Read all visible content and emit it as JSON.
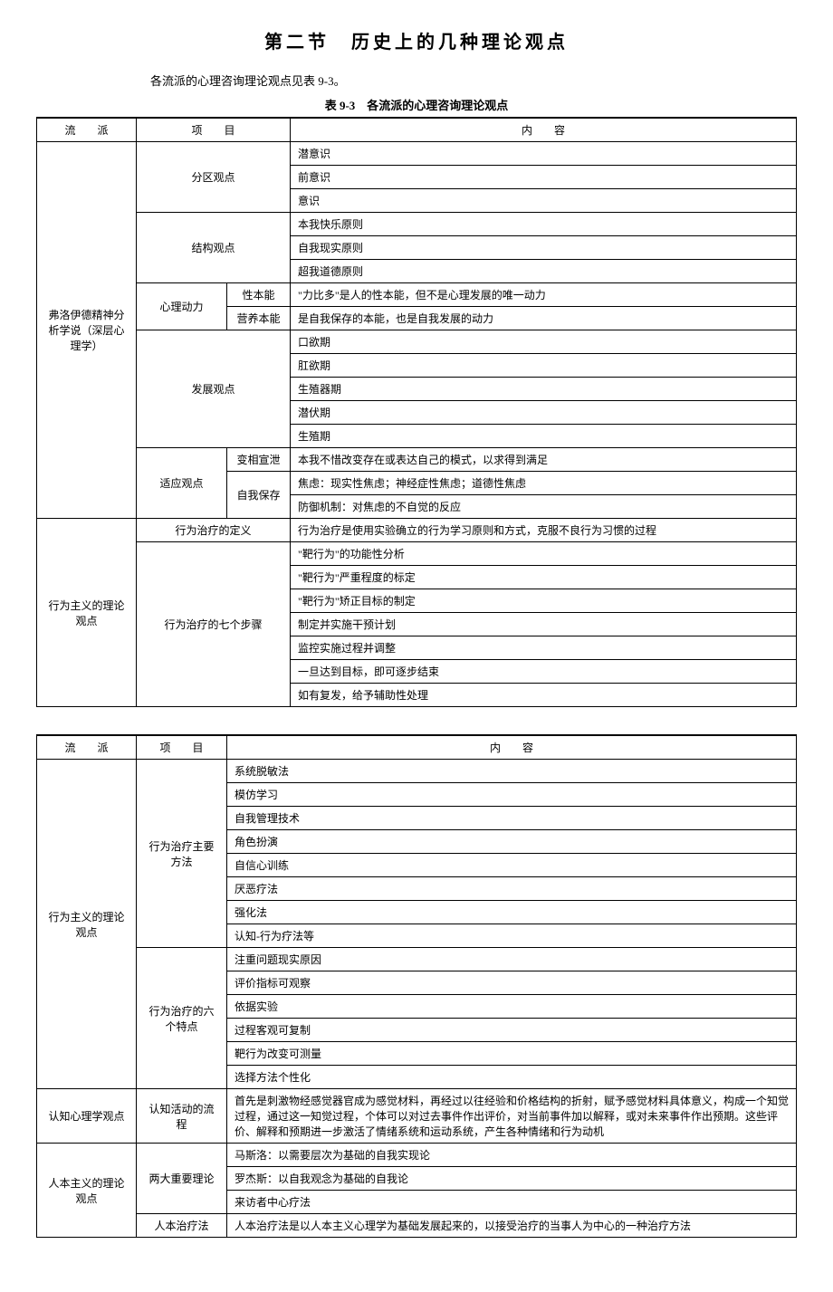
{
  "section_title": "第二节　历史上的几种理论观点",
  "intro": "各流派的心理咨询理论观点见表 9-3。",
  "table_caption": "表 9-3　各流派的心理咨询理论观点",
  "headers": {
    "school": "流　　派",
    "item": "项　　目",
    "content": "内　　容"
  },
  "table1": {
    "freud": {
      "name": "弗洛伊德精神分析学说（深层心理学）",
      "division": {
        "label": "分区观点",
        "r1": "潜意识",
        "r2": "前意识",
        "r3": "意识"
      },
      "structure": {
        "label": "结构观点",
        "r1": "本我快乐原则",
        "r2": "自我现实原则",
        "r3": "超我道德原则"
      },
      "dynamic": {
        "label": "心理动力",
        "r1_sub": "性本能",
        "r1_content": "\"力比多\"是人的性本能，但不是心理发展的唯一动力",
        "r2_sub": "营养本能",
        "r2_content": "是自我保存的本能，也是自我发展的动力"
      },
      "development": {
        "label": "发展观点",
        "r1": "口欲期",
        "r2": "肛欲期",
        "r3": "生殖器期",
        "r4": "潜伏期",
        "r5": "生殖期"
      },
      "adaptation": {
        "label": "适应观点",
        "r1_sub": "变相宣泄",
        "r1_content": "本我不惜改变存在或表达自己的模式，以求得到满足",
        "r2_sub": "自我保存",
        "r2_content": "焦虑：现实性焦虑；神经症性焦虑；道德性焦虑",
        "r3_content": "防御机制：对焦虑的不自觉的反应"
      }
    },
    "behaviorism": {
      "name": "行为主义的理论观点",
      "definition": {
        "label": "行为治疗的定义",
        "content": "行为治疗是使用实验确立的行为学习原则和方式，克服不良行为习惯的过程"
      },
      "steps": {
        "label": "行为治疗的七个步骤",
        "r1": "\"靶行为\"的功能性分析",
        "r2": "\"靶行为\"严重程度的标定",
        "r3": "\"靶行为\"矫正目标的制定",
        "r4": "制定并实施干预计划",
        "r5": "监控实施过程并调整",
        "r6": "一旦达到目标，即可逐步结束",
        "r7": "如有复发，给予辅助性处理"
      }
    }
  },
  "table2": {
    "behaviorism": {
      "name": "行为主义的理论观点",
      "methods": {
        "label": "行为治疗主要方法",
        "r1": "系统脱敏法",
        "r2": "模仿学习",
        "r3": "自我管理技术",
        "r4": "角色扮演",
        "r5": "自信心训练",
        "r6": "厌恶疗法",
        "r7": "强化法",
        "r8": "认知-行为疗法等"
      },
      "features": {
        "label": "行为治疗的六个特点",
        "r1": "注重问题现实原因",
        "r2": "评价指标可观察",
        "r3": "依据实验",
        "r4": "过程客观可复制",
        "r5": "靶行为改变可测量",
        "r6": "选择方法个性化"
      }
    },
    "cognitive": {
      "name": "认知心理学观点",
      "process": {
        "label": "认知活动的流程",
        "content": "首先是刺激物经感觉器官成为感觉材料，再经过以往经验和价格结构的折射，赋予感觉材料具体意义，构成一个知觉过程，通过这一知觉过程，个体可以对过去事件作出评价，对当前事件加以解释，或对未来事件作出预期。这些评价、解释和预期进一步激活了情绪系统和运动系统，产生各种情绪和行为动机"
      }
    },
    "humanism": {
      "name": "人本主义的理论观点",
      "theories": {
        "label": "两大重要理论",
        "r1": "马斯洛：以需要层次为基础的自我实现论",
        "r2": "罗杰斯：以自我观念为基础的自我论",
        "r3": "来访者中心疗法"
      },
      "therapy": {
        "label": "人本治疗法",
        "content": "人本治疗法是以人本主义心理学为基础发展起来的，以接受治疗的当事人为中心的一种治疗方法"
      }
    }
  }
}
